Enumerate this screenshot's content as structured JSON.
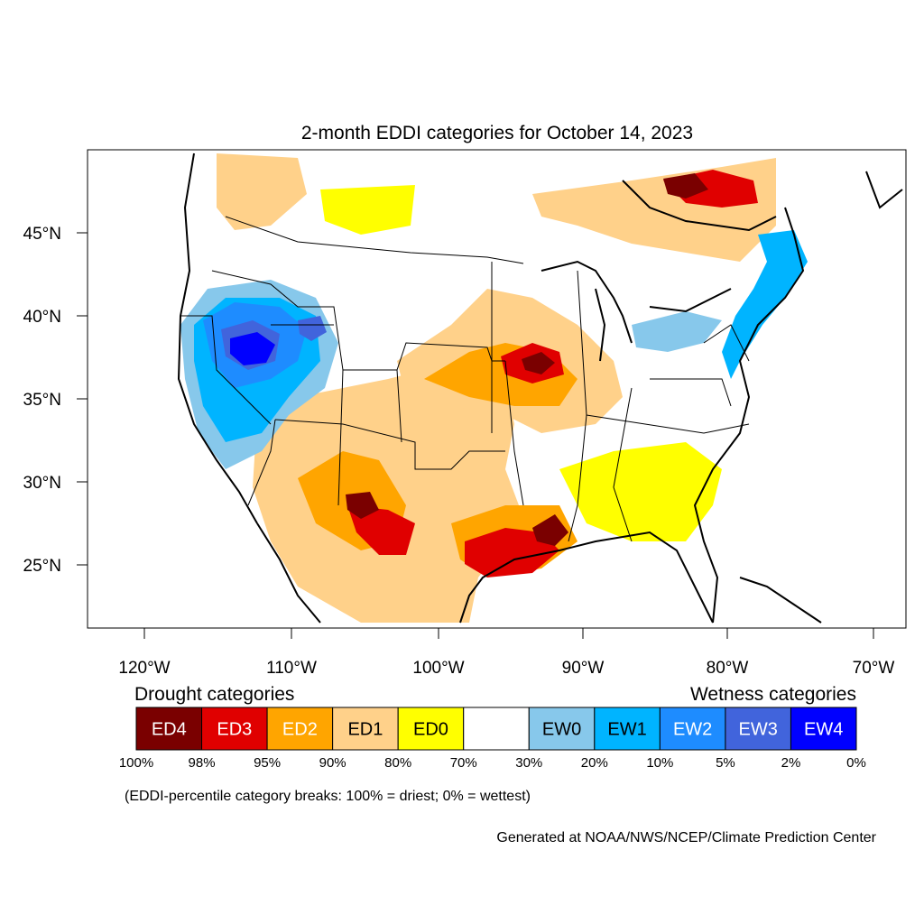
{
  "title": "2-month EDDI categories for October 14, 2023",
  "lat_ticks": [
    "45°N",
    "40°N",
    "35°N",
    "30°N",
    "25°N"
  ],
  "lon_ticks": [
    "120°W",
    "110°W",
    "100°W",
    "90°W",
    "80°W",
    "70°W"
  ],
  "legend": {
    "drought_heading": "Drought categories",
    "wetness_heading": "Wetness categories",
    "categories": [
      {
        "label": "ED4",
        "color": "#7a0000",
        "text_color": "#ffffff"
      },
      {
        "label": "ED3",
        "color": "#e00000",
        "text_color": "#ffffff"
      },
      {
        "label": "ED2",
        "color": "#ffa500",
        "text_color": "#ffffff"
      },
      {
        "label": "ED1",
        "color": "#ffd18a",
        "text_color": "#000000"
      },
      {
        "label": "ED0",
        "color": "#ffff00",
        "text_color": "#000000"
      },
      {
        "label": "",
        "color": "#ffffff",
        "text_color": "#000000"
      },
      {
        "label": "EW0",
        "color": "#87c8eb",
        "text_color": "#000000"
      },
      {
        "label": "EW1",
        "color": "#00b4ff",
        "text_color": "#000000"
      },
      {
        "label": "EW2",
        "color": "#1e8cff",
        "text_color": "#ffffff"
      },
      {
        "label": "EW3",
        "color": "#4164dc",
        "text_color": "#ffffff"
      },
      {
        "label": "EW4",
        "color": "#0000ff",
        "text_color": "#ffffff"
      }
    ],
    "breaks": [
      "100%",
      "98%",
      "95%",
      "90%",
      "80%",
      "70%",
      "30%",
      "20%",
      "10%",
      "5%",
      "2%",
      "0%"
    ]
  },
  "note": "(EDDI-percentile category breaks: 100% = driest; 0% = wettest)",
  "credit": "Generated at NOAA/NWS/NCEP/Climate Prediction Center"
}
